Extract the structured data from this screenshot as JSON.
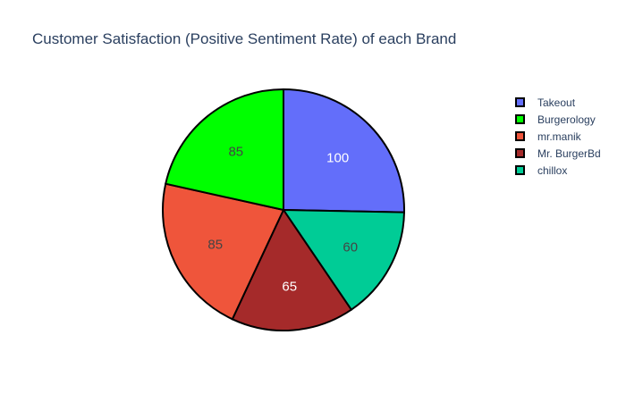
{
  "chart_data": {
    "type": "pie",
    "title": "Customer Satisfaction (Positive Sentiment Rate) of each Brand",
    "labels": [
      "Takeout",
      "Burgerology",
      "mr.manik",
      "Mr. BurgerBd",
      "chillox"
    ],
    "values": [
      100,
      85,
      85,
      65,
      60
    ],
    "slice_order": [
      "Takeout",
      "chillox",
      "Mr. BurgerBd",
      "mr.manik",
      "Burgerology"
    ],
    "colors": {
      "Takeout": "#636efa",
      "Burgerology": "#00ff00",
      "mr.manik": "#ef553b",
      "Mr. BurgerBd": "#a52a2a",
      "chillox": "#00cc96"
    },
    "label_colors": {
      "Takeout": "#ffffff",
      "Burgerology": "#444444",
      "mr.manik": "#444444",
      "Mr. BurgerBd": "#ffffff",
      "chillox": "#444444"
    },
    "slice_outline_color": "#000000",
    "legend_position": "top-right"
  }
}
